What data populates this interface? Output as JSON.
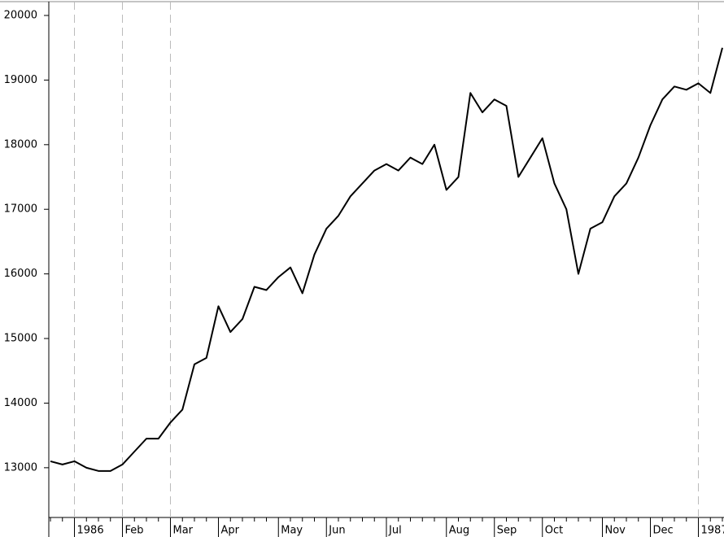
{
  "chart_data": {
    "type": "line",
    "categories": [
      null,
      null,
      "1986",
      null,
      null,
      null,
      "Feb",
      null,
      null,
      null,
      "Mar",
      null,
      null,
      null,
      "Apr",
      null,
      null,
      null,
      null,
      "May",
      null,
      null,
      null,
      "Jun",
      null,
      null,
      null,
      null,
      "Jul",
      null,
      null,
      null,
      null,
      "Aug",
      null,
      null,
      null,
      "Sep",
      null,
      null,
      null,
      "Oct",
      null,
      null,
      null,
      null,
      "Nov",
      null,
      null,
      null,
      "Dec",
      null,
      null,
      null,
      "1987",
      null,
      null
    ],
    "values": [
      13100,
      13050,
      13100,
      13000,
      12950,
      12950,
      13050,
      13250,
      13450,
      13450,
      13700,
      13900,
      14600,
      14700,
      15500,
      15100,
      15300,
      15800,
      15750,
      15950,
      16100,
      15700,
      16300,
      16700,
      16900,
      17200,
      17400,
      17600,
      17700,
      17600,
      17800,
      17700,
      18000,
      17300,
      17500,
      18800,
      18500,
      18700,
      18600,
      17500,
      17800,
      18100,
      17400,
      17000,
      16000,
      16700,
      16800,
      17200,
      17400,
      17800,
      18300,
      18700,
      18900,
      18850,
      18950,
      18800,
      19500
    ],
    "color": "#000000",
    "ylim": [
      12230,
      20214
    ],
    "yticks": [
      13000,
      14000,
      15000,
      16000,
      17000,
      18000,
      19000,
      20000
    ],
    "dashed_at": [
      "1986",
      "Feb",
      "Mar",
      "1987"
    ],
    "grid": false
  }
}
